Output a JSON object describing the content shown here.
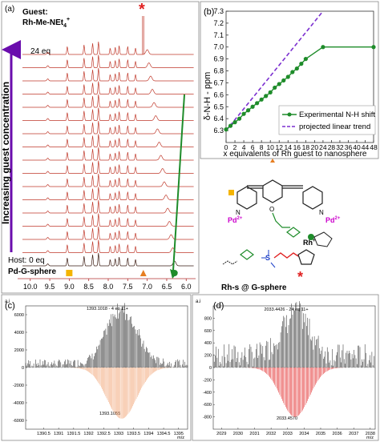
{
  "panel_a": {
    "label": "(a)",
    "guest_label": "Guest:",
    "guest_name": "Rh-Me-NEt",
    "guest_sub": "4",
    "guest_sup": "+",
    "eq_label": "24 eq",
    "host_label": "Host: 0 eq",
    "host_name": "Pd-G-sphere",
    "ylabel": "Increasing guest concentration",
    "star": "*",
    "xticks": [
      "10.0",
      "9.5",
      "9.0",
      "8.5",
      "8.0",
      "7.5",
      "7.0",
      "6.5",
      "6.0"
    ],
    "markers": [
      {
        "name": "square",
        "ppm": 9.0,
        "color": "#f4b400"
      },
      {
        "name": "triangle",
        "ppm": 7.1,
        "color": "#e67e22"
      },
      {
        "name": "circle",
        "ppm": 6.3,
        "color": "#1e8c2a"
      }
    ],
    "spectra_count": 17,
    "colors": {
      "spectra": "#c0392b",
      "host_spectrum": "#3a1a10",
      "arrow": "#1e8c2a",
      "axis_arrow": "#6a0dad",
      "star": "#e02020"
    }
  },
  "panel_b": {
    "label": "(b)",
    "xlabel": "x equivalents of Rh guest to nanosphere",
    "ylabel": "δ-N-H - ppm",
    "legend": [
      "Experimental N-H shift",
      "projected linear trend"
    ],
    "colors": {
      "experimental": "#1e8c2a",
      "projected": "#7b2fd0"
    }
  },
  "structure": {
    "caption": "Rh-s @ G-sphere",
    "pd_label": "Pd",
    "pd_sup": "2+",
    "rh_label": "Rh",
    "rh_sup": "+",
    "n_label": "N",
    "o_label": "O",
    "s_label": "S",
    "star": "*",
    "colors": {
      "pd": "#cc00cc",
      "guanidinium": "#1e8c2a",
      "sulfonate": "#1e40c8",
      "linker": "#e02020"
    }
  },
  "panel_c": {
    "label": "(c)",
    "unit": "a.i",
    "top_annotation": "1393.1018 - 4 eq 11+",
    "bottom_annotation": "1393.1055",
    "xlabel": "m/z",
    "colors": {
      "exp": "#222222",
      "sim": "#f0a070"
    }
  },
  "panel_d": {
    "label": "(d)",
    "unit": "a.i",
    "top_annotation": "2033.4426 - 24 eq 11+",
    "bottom_annotation": "2033.4570",
    "xlabel": "m/z",
    "colors": {
      "exp": "#222222",
      "sim": "#e02020"
    }
  },
  "chart_data": [
    {
      "type": "line",
      "panel": "(b)",
      "xlabel": "x equivalents of Rh guest to nanosphere",
      "ylabel": "δ-N-H - ppm",
      "xlim": [
        0,
        48
      ],
      "ylim": [
        6.2,
        7.3
      ],
      "xticks": [
        0,
        2,
        4,
        6,
        8,
        10,
        12,
        14,
        16,
        18,
        20,
        24,
        28,
        32,
        36,
        40,
        44,
        48
      ],
      "yticks": [
        6.3,
        6.4,
        6.5,
        6.6,
        6.7,
        6.8,
        6.9,
        7.0,
        7.1,
        7.2,
        7.3
      ],
      "legend_position": "bottom-right",
      "series": [
        {
          "name": "Experimental N-H shift",
          "x": [
            0,
            1,
            2,
            3,
            4,
            5,
            6,
            7,
            8,
            9,
            10,
            11,
            12,
            13,
            14,
            15,
            16,
            17,
            18,
            24,
            48
          ],
          "y": [
            6.31,
            6.34,
            6.37,
            6.4,
            6.44,
            6.47,
            6.5,
            6.53,
            6.56,
            6.59,
            6.62,
            6.66,
            6.69,
            6.72,
            6.75,
            6.79,
            6.82,
            6.86,
            6.9,
            7.0,
            7.0
          ]
        },
        {
          "name": "projected linear trend",
          "x": [
            0,
            24
          ],
          "y": [
            6.3,
            7.3
          ]
        }
      ]
    },
    {
      "type": "line",
      "panel": "(c)",
      "xlabel": "m/z",
      "xlim": [
        1389.9,
        1395.3
      ],
      "ylim": [
        -7000,
        7000
      ],
      "xticks": [
        1390.5,
        1391.0,
        1391.5,
        1392.0,
        1392.5,
        1393.0,
        1393.5,
        1394.0,
        1394.5,
        1395.0
      ],
      "yticks": [
        6000,
        4000,
        2000,
        0,
        -2000,
        -4000,
        -6000
      ],
      "peaks": [
        {
          "label": "1393.1018 - 4 eq 11+",
          "x": 1393.1018,
          "y": 6200
        },
        {
          "label": "1393.1055",
          "x": 1393.1055,
          "y": -5800
        }
      ]
    },
    {
      "type": "line",
      "panel": "(d)",
      "xlabel": "m/z",
      "xlim": [
        2028.5,
        2038.3
      ],
      "ylim": [
        -1000,
        1000
      ],
      "xticks": [
        2029,
        2030,
        2031,
        2032,
        2033,
        2034,
        2035,
        2036,
        2037,
        2038
      ],
      "yticks": [
        800,
        600,
        400,
        200,
        0,
        -200,
        -400,
        -600,
        -800
      ],
      "peaks": [
        {
          "label": "2033.4426 - 24 eq 11+",
          "x": 2033.4426,
          "y": 700
        },
        {
          "label": "2033.4570",
          "x": 2033.457,
          "y": -800
        }
      ]
    }
  ]
}
